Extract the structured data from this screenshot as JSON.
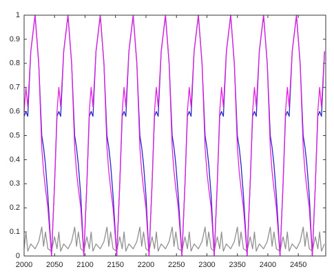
{
  "chart_data": {
    "type": "line",
    "x": [
      2000,
      2003,
      2006,
      2011,
      2018,
      2024,
      2029,
      2032,
      2035,
      2039,
      2045,
      2050,
      2054,
      2057,
      2060,
      2065,
      2072,
      2078,
      2083,
      2086,
      2089,
      2093,
      2098,
      2103,
      2107,
      2110,
      2113,
      2118,
      2125,
      2131,
      2136,
      2139,
      2142,
      2146,
      2152,
      2157,
      2161,
      2164,
      2167,
      2172,
      2179,
      2185,
      2190,
      2193,
      2196,
      2200,
      2205,
      2210,
      2214,
      2217,
      2220,
      2225,
      2232,
      2238,
      2243,
      2246,
      2249,
      2253,
      2259,
      2264,
      2268,
      2271,
      2274,
      2279,
      2286,
      2292,
      2297,
      2300,
      2303,
      2307,
      2312,
      2317,
      2321,
      2324,
      2327,
      2332,
      2339,
      2345,
      2350,
      2353,
      2356,
      2360,
      2366,
      2371,
      2375,
      2378,
      2381,
      2386,
      2393,
      2399,
      2404,
      2407,
      2410,
      2414,
      2420,
      2425,
      2429,
      2432,
      2435,
      2440,
      2447,
      2453,
      2458,
      2461,
      2464,
      2468,
      2473,
      2478,
      2482,
      2485,
      2488,
      2493
    ],
    "series": [
      {
        "color": "#2323c8",
        "values": [
          0.58,
          0.6,
          0.58,
          0.85,
          1,
          0.8,
          0.5,
          0.45,
          0.38,
          0.25,
          0,
          0.3,
          0.58,
          0.6,
          0.58,
          0.85,
          1,
          0.8,
          0.5,
          0.45,
          0.38,
          0.25,
          0,
          0.3,
          0.58,
          0.6,
          0.58,
          0.85,
          1,
          0.8,
          0.5,
          0.45,
          0.38,
          0.25,
          0,
          0.3,
          0.58,
          0.6,
          0.58,
          0.85,
          1,
          0.8,
          0.5,
          0.45,
          0.38,
          0.25,
          0,
          0.3,
          0.58,
          0.6,
          0.58,
          0.85,
          1,
          0.8,
          0.5,
          0.45,
          0.38,
          0.25,
          0,
          0.3,
          0.58,
          0.6,
          0.58,
          0.85,
          1,
          0.8,
          0.5,
          0.45,
          0.38,
          0.25,
          0,
          0.3,
          0.58,
          0.6,
          0.58,
          0.85,
          1,
          0.8,
          0.5,
          0.45,
          0.38,
          0.25,
          0,
          0.3,
          0.58,
          0.6,
          0.58,
          0.85,
          1,
          0.8,
          0.5,
          0.45,
          0.38,
          0.25,
          0,
          0.3,
          0.58,
          0.6,
          0.58,
          0.85,
          1,
          0.8,
          0.5,
          0.45,
          0.38,
          0.25,
          0,
          0.3,
          0.58,
          0.6,
          0.58,
          0.85
        ]
      },
      {
        "color": "#e020e0",
        "values": [
          0.6,
          0.7,
          0.62,
          0.85,
          1,
          0.8,
          0.45,
          0.35,
          0.28,
          0.2,
          0,
          0.3,
          0.6,
          0.7,
          0.62,
          0.85,
          1,
          0.8,
          0.45,
          0.35,
          0.28,
          0.2,
          0,
          0.3,
          0.6,
          0.7,
          0.62,
          0.85,
          1,
          0.8,
          0.45,
          0.35,
          0.28,
          0.2,
          0,
          0.3,
          0.6,
          0.7,
          0.62,
          0.85,
          1,
          0.8,
          0.45,
          0.35,
          0.28,
          0.2,
          0,
          0.3,
          0.6,
          0.7,
          0.62,
          0.85,
          1,
          0.8,
          0.45,
          0.35,
          0.28,
          0.2,
          0,
          0.3,
          0.6,
          0.7,
          0.62,
          0.85,
          1,
          0.8,
          0.45,
          0.35,
          0.28,
          0.2,
          0,
          0.3,
          0.6,
          0.7,
          0.62,
          0.85,
          1,
          0.8,
          0.45,
          0.35,
          0.28,
          0.2,
          0,
          0.3,
          0.6,
          0.7,
          0.62,
          0.85,
          1,
          0.8,
          0.45,
          0.35,
          0.28,
          0.2,
          0,
          0.3,
          0.6,
          0.7,
          0.62,
          0.85,
          1,
          0.8,
          0.45,
          0.35,
          0.28,
          0.2,
          0,
          0.3,
          0.6,
          0.7,
          0.62,
          0.85
        ]
      },
      {
        "color": "#909090",
        "values": [
          0.03,
          0.1,
          0.02,
          0.05,
          0.03,
          0.06,
          0.12,
          0.04,
          0.1,
          0.03,
          0.02,
          0.08,
          0.03,
          0.1,
          0.02,
          0.05,
          0.03,
          0.06,
          0.12,
          0.04,
          0.1,
          0.03,
          0.02,
          0.08,
          0.03,
          0.1,
          0.02,
          0.05,
          0.03,
          0.06,
          0.12,
          0.04,
          0.1,
          0.03,
          0.02,
          0.08,
          0.03,
          0.1,
          0.02,
          0.05,
          0.03,
          0.06,
          0.12,
          0.04,
          0.1,
          0.03,
          0.02,
          0.08,
          0.03,
          0.1,
          0.02,
          0.05,
          0.03,
          0.06,
          0.12,
          0.04,
          0.1,
          0.03,
          0.02,
          0.08,
          0.03,
          0.1,
          0.02,
          0.05,
          0.03,
          0.06,
          0.12,
          0.04,
          0.1,
          0.03,
          0.02,
          0.08,
          0.03,
          0.1,
          0.02,
          0.05,
          0.03,
          0.06,
          0.12,
          0.04,
          0.1,
          0.03,
          0.02,
          0.08,
          0.03,
          0.1,
          0.02,
          0.05,
          0.03,
          0.06,
          0.12,
          0.04,
          0.1,
          0.03,
          0.02,
          0.08,
          0.03,
          0.1,
          0.02,
          0.05,
          0.03,
          0.06,
          0.12,
          0.04,
          0.1,
          0.03,
          0.02,
          0.08,
          0.03,
          0.1,
          0.02,
          0.05
        ]
      }
    ],
    "xlim": [
      2000,
      2495
    ],
    "xticks": [
      2000,
      2050,
      2100,
      2150,
      2200,
      2250,
      2300,
      2350,
      2400,
      2450
    ],
    "ylim": [
      0,
      1
    ],
    "yticks": [
      0,
      0.1,
      0.2,
      0.3,
      0.4,
      0.5,
      0.6,
      0.7,
      0.8,
      0.9,
      1
    ],
    "grid": false
  }
}
